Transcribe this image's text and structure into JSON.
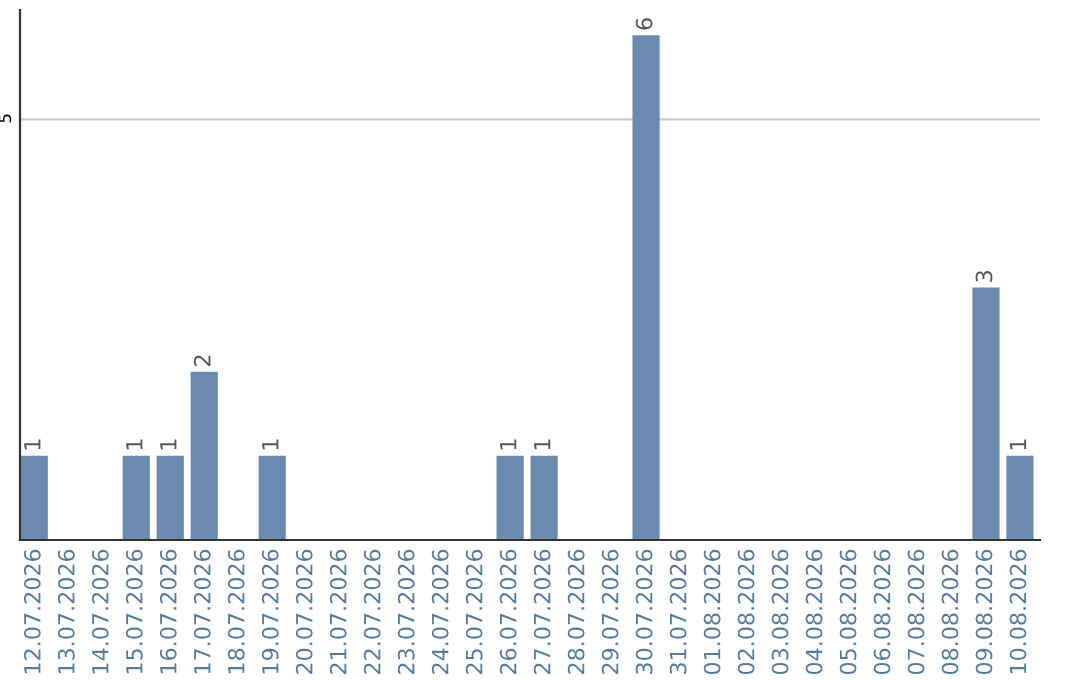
{
  "chart_data": {
    "type": "bar",
    "categories": [
      "12.07.2026",
      "13.07.2026",
      "14.07.2026",
      "15.07.2026",
      "16.07.2026",
      "17.07.2026",
      "18.07.2026",
      "19.07.2026",
      "20.07.2026",
      "21.07.2026",
      "22.07.2026",
      "23.07.2026",
      "24.07.2026",
      "25.07.2026",
      "26.07.2026",
      "27.07.2026",
      "28.07.2026",
      "29.07.2026",
      "30.07.2026",
      "31.07.2026",
      "01.08.2026",
      "02.08.2026",
      "03.08.2026",
      "04.08.2026",
      "05.08.2026",
      "06.08.2026",
      "07.08.2026",
      "08.08.2026",
      "09.08.2026",
      "10.08.2026"
    ],
    "values": [
      1,
      0,
      0,
      1,
      1,
      2,
      0,
      1,
      0,
      0,
      0,
      0,
      0,
      0,
      1,
      1,
      0,
      0,
      6,
      0,
      0,
      0,
      0,
      0,
      0,
      0,
      0,
      0,
      3,
      1
    ],
    "value_labels": [
      "1",
      null,
      null,
      "1",
      "1",
      "2",
      null,
      "1",
      null,
      null,
      null,
      null,
      null,
      null,
      "1",
      "1",
      null,
      null,
      "6",
      null,
      null,
      null,
      null,
      null,
      null,
      null,
      null,
      null,
      "3",
      "1"
    ],
    "color": "#6a8bad",
    "ylim": [
      0,
      6.3
    ],
    "yticks": [
      5
    ],
    "grid": "y"
  }
}
